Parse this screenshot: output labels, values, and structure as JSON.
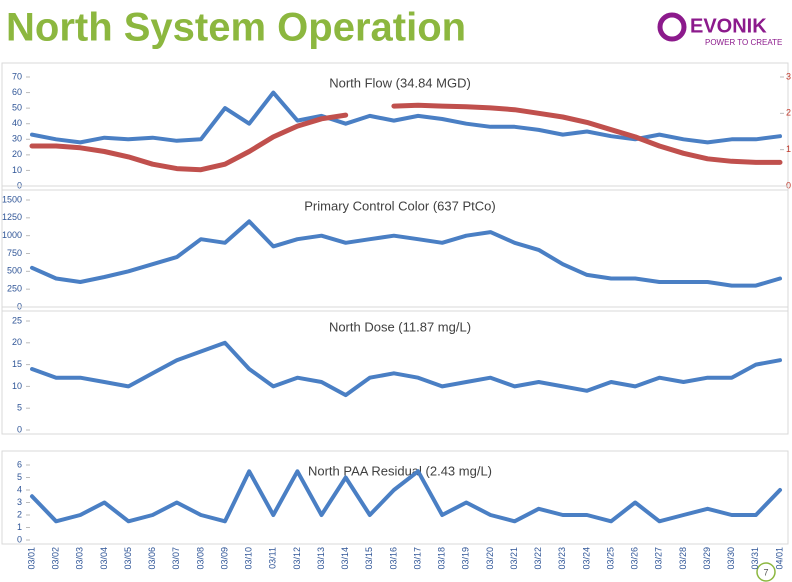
{
  "header": {
    "title": "North System Operation",
    "logo": "EVONIK",
    "tagline": "POWER TO CREATE"
  },
  "page_number": "7",
  "chart_data": [
    {
      "type": "line",
      "title": "North Flow (34.84 MGD)",
      "ylim": [
        0,
        70
      ],
      "yticks": [
        0,
        10,
        20,
        30,
        40,
        50,
        60,
        70
      ],
      "y2lim": [
        0,
        3
      ],
      "y2ticks": [
        0,
        1,
        2,
        3
      ],
      "series": [
        {
          "color": "#4a7fc4",
          "values": [
            33,
            30,
            28,
            31,
            30,
            31,
            29,
            30,
            50,
            40,
            60,
            42,
            45,
            40,
            45,
            42,
            45,
            43,
            40,
            38,
            38,
            36,
            33,
            35,
            32,
            30,
            33,
            30,
            28,
            30,
            30,
            32
          ]
        },
        {
          "color": "#c0504d",
          "axis": "y2",
          "values": [
            1.1,
            1.1,
            1.05,
            0.95,
            0.8,
            0.6,
            0.48,
            0.45,
            0.6,
            0.95,
            1.35,
            1.65,
            1.85,
            1.95,
            null,
            2.2,
            2.22,
            2.2,
            2.18,
            2.15,
            2.1,
            2.0,
            1.9,
            1.75,
            1.55,
            1.35,
            1.1,
            0.9,
            0.75,
            0.68,
            0.65,
            0.65
          ]
        }
      ]
    },
    {
      "type": "line",
      "title": "Primary Control Color (637 PtCo)",
      "ylim": [
        0,
        1500
      ],
      "yticks": [
        0,
        250,
        500,
        750,
        1000,
        1250,
        1500
      ],
      "series": [
        {
          "color": "#4a7fc4",
          "values": [
            550,
            400,
            350,
            420,
            500,
            600,
            700,
            950,
            900,
            1200,
            850,
            950,
            1000,
            900,
            950,
            1000,
            950,
            900,
            1000,
            1050,
            900,
            800,
            600,
            450,
            400,
            400,
            350,
            350,
            350,
            300,
            300,
            400
          ]
        }
      ]
    },
    {
      "type": "line",
      "title": "North Dose (11.87 mg/L)",
      "ylim": [
        0,
        25
      ],
      "yticks": [
        0,
        5,
        10,
        15,
        20,
        25
      ],
      "series": [
        {
          "color": "#4a7fc4",
          "values": [
            14,
            12,
            12,
            11,
            10,
            13,
            16,
            18,
            20,
            14,
            10,
            12,
            11,
            8,
            12,
            13,
            12,
            10,
            11,
            12,
            10,
            11,
            10,
            9,
            11,
            10,
            12,
            11,
            12,
            12,
            15,
            16
          ]
        }
      ]
    },
    {
      "type": "line",
      "title": "North PAA Residual (2.43 mg/L)",
      "ylim": [
        0,
        6
      ],
      "yticks": [
        0,
        1,
        2,
        3,
        4,
        5,
        6
      ],
      "categories": [
        "03/01",
        "03/02",
        "03/03",
        "03/04",
        "03/05",
        "03/06",
        "03/07",
        "03/08",
        "03/09",
        "03/10",
        "03/11",
        "03/12",
        "03/13",
        "03/14",
        "03/15",
        "03/16",
        "03/17",
        "03/18",
        "03/19",
        "03/20",
        "03/21",
        "03/22",
        "03/23",
        "03/24",
        "03/25",
        "03/26",
        "03/27",
        "03/28",
        "03/29",
        "03/30",
        "03/31",
        "04/01"
      ],
      "series": [
        {
          "color": "#4a7fc4",
          "values": [
            3.5,
            1.5,
            2,
            3,
            1.5,
            2,
            3,
            2,
            1.5,
            5.5,
            2,
            5.5,
            2,
            5,
            2,
            4,
            5.5,
            2,
            3,
            2,
            1.5,
            2.5,
            2,
            2,
            1.5,
            3,
            1.5,
            2,
            2.5,
            2,
            2,
            4
          ]
        }
      ]
    }
  ]
}
